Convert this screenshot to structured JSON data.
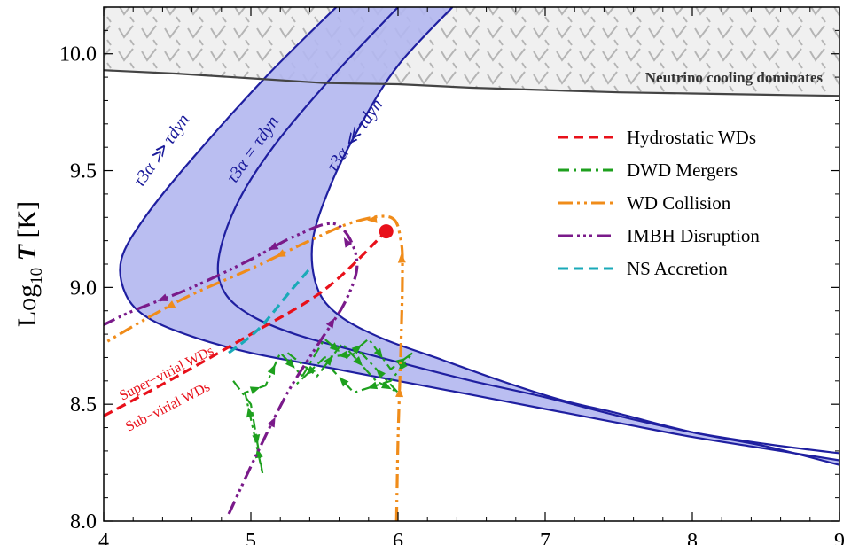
{
  "chart_data": {
    "type": "line",
    "xlim": [
      4,
      9
    ],
    "ylim": [
      8.0,
      10.2
    ],
    "x_ticks": [
      "4",
      "5",
      "6",
      "7",
      "8",
      "9"
    ],
    "y_ticks": [
      "8.0",
      "8.5",
      "9.0",
      "9.5",
      "10.0"
    ],
    "ylabel": "Log₁₀ T [K]",
    "ylabel_parts": {
      "base": "Log",
      "sub": "10",
      "var": "T",
      "unit": " [K]"
    },
    "grid": false,
    "legend_position": "right",
    "colors": {
      "band_fill": "#b3b7f0",
      "band_line": "#1f1fa0",
      "neutrino_line": "#444444",
      "hydrostatic": "#e8101a",
      "dwd": "#1ea01e",
      "collision": "#f08c1a",
      "imbh": "#7a1a8a",
      "ns": "#1aaab8"
    },
    "neutrino_region": {
      "label": "Neutrino cooling dominates",
      "boundary": [
        [
          4.0,
          9.93
        ],
        [
          4.5,
          9.915
        ],
        [
          5.0,
          9.895
        ],
        [
          5.5,
          9.875
        ],
        [
          6.0,
          9.87
        ],
        [
          6.5,
          9.855
        ],
        [
          7.0,
          9.845
        ],
        [
          7.5,
          9.835
        ],
        [
          8.0,
          9.83
        ],
        [
          8.5,
          9.825
        ],
        [
          9.0,
          9.82
        ]
      ]
    },
    "triple_alpha_curves": [
      {
        "label": "τ3α ≫ τdyn",
        "points": [
          [
            5.58,
            10.2
          ],
          [
            5.1,
            9.9
          ],
          [
            4.6,
            9.55
          ],
          [
            4.28,
            9.3
          ],
          [
            4.12,
            9.12
          ],
          [
            4.15,
            8.97
          ],
          [
            4.3,
            8.87
          ],
          [
            4.6,
            8.79
          ],
          [
            5.0,
            8.72
          ],
          [
            5.5,
            8.66
          ],
          [
            6.0,
            8.6
          ],
          [
            6.5,
            8.54
          ],
          [
            7.0,
            8.48
          ],
          [
            7.5,
            8.42
          ],
          [
            8.0,
            8.36
          ],
          [
            8.5,
            8.31
          ],
          [
            9.0,
            8.26
          ]
        ]
      },
      {
        "label": "τ3α = τdyn",
        "points": [
          [
            6.0,
            10.2
          ],
          [
            5.55,
            9.9
          ],
          [
            5.15,
            9.6
          ],
          [
            4.9,
            9.35
          ],
          [
            4.78,
            9.12
          ],
          [
            4.82,
            8.98
          ],
          [
            5.0,
            8.88
          ],
          [
            5.3,
            8.8
          ],
          [
            5.7,
            8.73
          ],
          [
            6.0,
            8.68
          ],
          [
            6.5,
            8.6
          ],
          [
            7.0,
            8.53
          ],
          [
            7.5,
            8.45
          ],
          [
            8.0,
            8.38
          ],
          [
            8.5,
            8.33
          ],
          [
            9.0,
            8.29
          ]
        ]
      },
      {
        "label": "τ3α ≪ τdyn",
        "points": [
          [
            6.37,
            10.2
          ],
          [
            6.0,
            9.95
          ],
          [
            5.75,
            9.7
          ],
          [
            5.55,
            9.45
          ],
          [
            5.42,
            9.2
          ],
          [
            5.45,
            9.0
          ],
          [
            5.6,
            8.88
          ],
          [
            5.9,
            8.78
          ],
          [
            6.3,
            8.69
          ],
          [
            6.7,
            8.6
          ],
          [
            7.1,
            8.52
          ],
          [
            7.5,
            8.46
          ],
          [
            8.0,
            8.38
          ],
          [
            8.5,
            8.32
          ],
          [
            9.0,
            8.24
          ]
        ]
      }
    ],
    "series": [
      {
        "name": "Hydrostatic WDs",
        "style": "dashed",
        "points": [
          [
            4.0,
            8.45
          ],
          [
            4.5,
            8.62
          ],
          [
            5.0,
            8.8
          ],
          [
            5.5,
            8.99
          ],
          [
            5.92,
            9.24
          ]
        ],
        "marker": [
          5.92,
          9.24
        ]
      },
      {
        "name": "DWD Mergers",
        "style": "dashdot",
        "tracks": [
          [
            [
              4.88,
              8.6
            ],
            [
              5.0,
              8.5
            ],
            [
              5.08,
              8.2
            ],
            [
              5.02,
              8.38
            ],
            [
              4.96,
              8.55
            ],
            [
              5.1,
              8.58
            ],
            [
              5.2,
              8.72
            ],
            [
              5.35,
              8.62
            ]
          ],
          [
            [
              5.35,
              8.62
            ],
            [
              5.5,
              8.78
            ],
            [
              5.65,
              8.7
            ],
            [
              5.8,
              8.78
            ],
            [
              5.95,
              8.65
            ],
            [
              6.1,
              8.72
            ],
            [
              5.95,
              8.6
            ],
            [
              5.7,
              8.55
            ],
            [
              5.55,
              8.65
            ]
          ],
          [
            [
              5.25,
              8.72
            ],
            [
              5.45,
              8.62
            ],
            [
              5.62,
              8.76
            ],
            [
              5.85,
              8.6
            ],
            [
              6.0,
              8.55
            ],
            [
              5.75,
              8.72
            ],
            [
              5.5,
              8.7
            ],
            [
              5.3,
              8.58
            ]
          ]
        ]
      },
      {
        "name": "WD Collision",
        "style": "dashdotdot",
        "points": [
          [
            5.99,
            8.0
          ],
          [
            6.0,
            8.35
          ],
          [
            6.02,
            8.75
          ],
          [
            6.03,
            9.05
          ],
          [
            6.02,
            9.2
          ],
          [
            5.95,
            9.3
          ],
          [
            5.7,
            9.28
          ],
          [
            5.4,
            9.2
          ],
          [
            5.0,
            9.08
          ],
          [
            4.6,
            8.97
          ],
          [
            4.3,
            8.87
          ],
          [
            4.0,
            8.76
          ]
        ]
      },
      {
        "name": "IMBH Disruption",
        "style": "dashdotdotdot",
        "points": [
          [
            4.85,
            8.03
          ],
          [
            5.05,
            8.3
          ],
          [
            5.25,
            8.55
          ],
          [
            5.45,
            8.75
          ],
          [
            5.65,
            8.95
          ],
          [
            5.72,
            9.12
          ],
          [
            5.58,
            9.27
          ],
          [
            5.3,
            9.22
          ],
          [
            5.0,
            9.12
          ],
          [
            4.6,
            9.0
          ],
          [
            4.2,
            8.9
          ],
          [
            4.0,
            8.84
          ]
        ]
      },
      {
        "name": "NS Accretion",
        "style": "dashed",
        "points": [
          [
            4.85,
            8.72
          ],
          [
            5.05,
            8.82
          ],
          [
            5.25,
            8.97
          ],
          [
            5.4,
            9.08
          ]
        ]
      }
    ],
    "annotations": [
      "Super−virial WDs",
      "Sub−virial WDs"
    ]
  }
}
